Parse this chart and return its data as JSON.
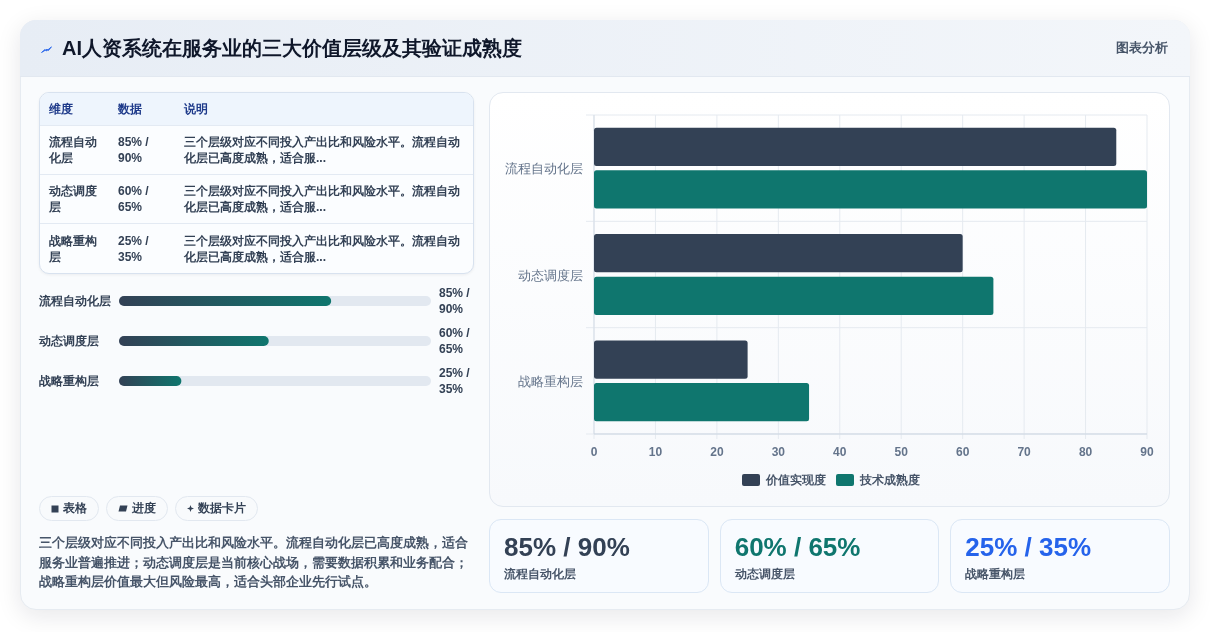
{
  "chart_data": [
    {
      "type": "other",
      "title": "AI人资系统在服务业的三大价值层级及其验证成熟度",
      "annotations": [
        "图表分析"
      ]
    },
    {
      "type": "other",
      "annotations": [
        "维度",
        "数据",
        "说明",
        "流程自动化层",
        "85% / 90%",
        "三个层级对应不同投入产出比和风险水平。流程自动化层已高度成熟，适合服...",
        "动态调度层",
        "60% / 65%",
        "三个层级对应不同投入产出比和风险水平。流程自动化层已高度成熟，适合服...",
        "战略重构层",
        "25% / 35%",
        "三个层级对应不同投入产出比和风险水平。流程自动化层已高度成熟，适合服..."
      ]
    },
    {
      "type": "bar",
      "orientation": "horizontal",
      "categories": [
        "流程自动化层",
        "动态调度层",
        "战略重构层"
      ],
      "values": [
        85,
        60,
        25
      ],
      "value_labels": [
        "85% / 90%",
        "60% / 65%",
        "25% / 35%"
      ],
      "color": "#0f766e",
      "xlim": [
        0,
        125
      ],
      "tick_labels": "y"
    },
    {
      "type": "other",
      "annotations": [
        "表格",
        "进度",
        "数据卡片",
        "三个层级对应不同投入产出比和风险水平。流程自动化层已高度成熟，适合服务业普遍推进；动态调度层是当前核心战场，需要数据积累和业务配合；战略重构层价值最大但风险最高，适合头部企业先行试点。"
      ]
    },
    {
      "type": "bar",
      "orientation": "horizontal",
      "categories": [
        "流程自动化层",
        "动态调度层",
        "战略重构层"
      ],
      "series": [
        {
          "name": "价值实现度",
          "color": "#334155",
          "values": [
            85,
            60,
            25
          ]
        },
        {
          "name": "技术成熟度",
          "color": "#0f766e",
          "values": [
            90,
            65,
            35
          ]
        }
      ],
      "xlim": [
        0,
        90
      ],
      "xticks": [
        0,
        10,
        20,
        30,
        40,
        50,
        60,
        70,
        80,
        90
      ],
      "grid": true,
      "legend": "bottom"
    },
    {
      "type": "other",
      "annotations": [
        "85% / 90%",
        "流程自动化层",
        "60% / 65%",
        "动态调度层",
        "25% / 35%",
        "战略重构层"
      ]
    }
  ]
}
